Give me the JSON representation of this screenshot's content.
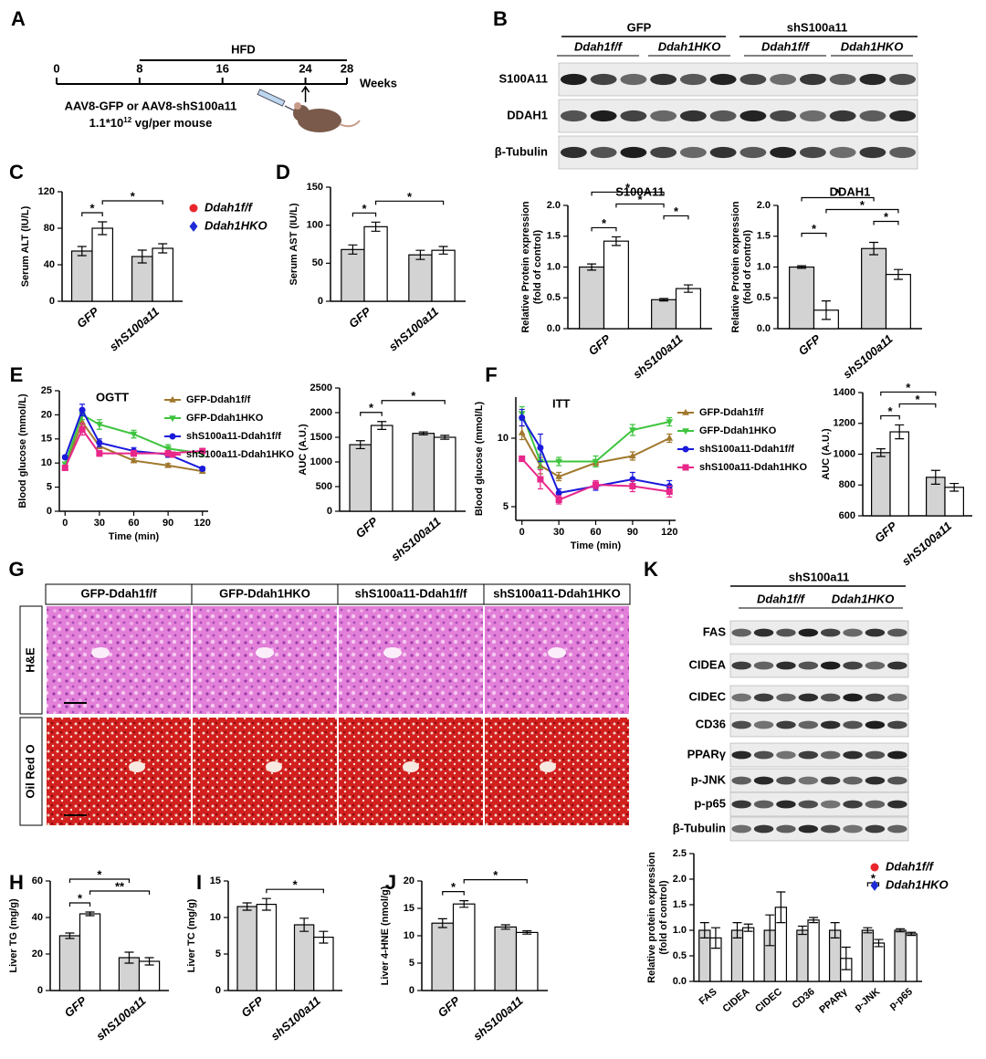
{
  "panel_labels": [
    "A",
    "B",
    "C",
    "D",
    "E",
    "F",
    "G",
    "H",
    "I",
    "J",
    "K"
  ],
  "timeline": {
    "period": "HFD",
    "ticks": [
      0,
      8,
      16,
      24,
      28
    ],
    "unit": "Weeks",
    "injection": "AAV8-GFP or AAV8-shS100a11",
    "dose": [
      "1.1*10",
      "12",
      " vg/per mouse"
    ]
  },
  "blot_b": {
    "groups": [
      "GFP",
      "shS100a11"
    ],
    "genotypes": [
      "Ddah1f/f",
      "Ddah1HKO",
      "Ddah1f/f",
      "Ddah1HKO"
    ],
    "rows": [
      "S100A11",
      "DDAH1",
      "β-Tubulin"
    ]
  },
  "histology": {
    "columns": [
      "GFP-Ddah1f/f",
      "GFP-Ddah1HKO",
      "shS100a11-Ddah1f/f",
      "shS100a11-Ddah1HKO"
    ],
    "rows": [
      "H&E",
      "Oil Red O"
    ]
  },
  "blot_k": {
    "group": "shS100a11",
    "genotypes": [
      "Ddah1f/f",
      "Ddah1HKO"
    ],
    "rows": [
      "FAS",
      "CIDEA",
      "CIDEC",
      "CD36",
      "PPARγ",
      "p-JNK",
      "p-p65",
      "β-Tubulin"
    ]
  },
  "chart_data": [
    {
      "type": "bar",
      "categories": [
        "GFP",
        "shS100a11"
      ],
      "ylabel": "Serum ALT (IU/L)",
      "ylim": [
        0,
        120
      ],
      "yticks": [
        0,
        40,
        80,
        120
      ],
      "legend": "upper right",
      "series": [
        {
          "name": "Ddah1f/f",
          "color": "#d3d3d3",
          "marker": "circle",
          "marker_color": "#e8262b",
          "values": [
            55,
            49
          ],
          "errors": [
            5,
            7
          ]
        },
        {
          "name": "Ddah1HKO",
          "color": "#ffffff",
          "marker": "diamond",
          "marker_color": "#1f2bd6",
          "values": [
            80,
            58
          ],
          "errors": [
            7,
            5
          ]
        }
      ],
      "significance": [
        {
          "from": [
            0,
            0
          ],
          "to": [
            0,
            1
          ],
          "label": "*"
        },
        {
          "from": [
            0,
            1
          ],
          "to": [
            1,
            1
          ],
          "label": "*"
        }
      ]
    },
    {
      "type": "bar",
      "categories": [
        "GFP",
        "shS100a11"
      ],
      "ylabel": "Serum AST (IU/L)",
      "ylim": [
        0,
        150
      ],
      "yticks": [
        0,
        50,
        100,
        150
      ],
      "series": [
        {
          "color": "#d3d3d3",
          "values": [
            68,
            61
          ],
          "errors": [
            6,
            6
          ]
        },
        {
          "color": "#ffffff",
          "values": [
            98,
            67
          ],
          "errors": [
            6,
            5
          ]
        }
      ],
      "significance": [
        {
          "from": [
            0,
            0
          ],
          "to": [
            0,
            1
          ],
          "label": "*"
        },
        {
          "from": [
            0,
            1
          ],
          "to": [
            1,
            1
          ],
          "label": "*"
        }
      ]
    },
    {
      "type": "bar",
      "title": "S100A11",
      "categories": [
        "GFP",
        "shS100a11"
      ],
      "ylabel": [
        "Relative Protein expression",
        "(fold of control)"
      ],
      "ylim": [
        0,
        2
      ],
      "yticks": [
        {
          "value": 0,
          "label": "0.0"
        },
        0.5,
        {
          "value": 1,
          "label": "1.0"
        },
        1.5,
        {
          "value": 2,
          "label": "2.0"
        }
      ],
      "series": [
        {
          "color": "#d3d3d3",
          "values": [
            1.0,
            0.47
          ],
          "errors": [
            0.05,
            0.02
          ]
        },
        {
          "color": "#ffffff",
          "values": [
            1.42,
            0.65
          ],
          "errors": [
            0.07,
            0.06
          ]
        }
      ],
      "significance": [
        {
          "from": [
            0,
            0
          ],
          "to": [
            0,
            1
          ],
          "label": "*"
        },
        {
          "from": [
            1,
            0
          ],
          "to": [
            1,
            1
          ],
          "label": "*"
        },
        {
          "from": [
            0,
            1
          ],
          "to": [
            1,
            0
          ],
          "label": "*"
        },
        {
          "from": [
            0,
            0
          ],
          "to": [
            1,
            0
          ],
          "label": "*"
        }
      ]
    },
    {
      "type": "bar",
      "title": "DDAH1",
      "categories": [
        "GFP",
        "shS100a11"
      ],
      "ylabel": [
        "Relative Protein expression",
        "(fold of control)"
      ],
      "ylim": [
        0,
        2
      ],
      "yticks": [
        {
          "value": 0,
          "label": "0.0"
        },
        0.5,
        {
          "value": 1,
          "label": "1.0"
        },
        1.5,
        {
          "value": 2,
          "label": "2.0"
        }
      ],
      "series": [
        {
          "color": "#d3d3d3",
          "values": [
            1.0,
            1.3
          ],
          "errors": [
            0.02,
            0.1
          ]
        },
        {
          "color": "#ffffff",
          "values": [
            0.3,
            0.88
          ],
          "errors": [
            0.15,
            0.08
          ]
        }
      ],
      "significance": [
        {
          "from": [
            0,
            0
          ],
          "to": [
            0,
            1
          ],
          "label": "*"
        },
        {
          "from": [
            1,
            0
          ],
          "to": [
            1,
            1
          ],
          "label": "*"
        },
        {
          "from": [
            0,
            1
          ],
          "to": [
            1,
            1
          ],
          "label": "*"
        },
        {
          "from": [
            0,
            0
          ],
          "to": [
            1,
            0
          ],
          "label": "*"
        }
      ]
    },
    {
      "type": "line",
      "title": "OGTT",
      "x": [
        0,
        15,
        30,
        60,
        90,
        120
      ],
      "xlim": [
        -5,
        125
      ],
      "xticks": [
        0,
        30,
        60,
        90,
        120
      ],
      "xlabel": "Time (min)",
      "ylabel": "Blood glucose (mmol/L)",
      "ylim": [
        0,
        25
      ],
      "yticks": [
        0,
        5,
        10,
        15,
        20,
        25
      ],
      "legend": "upper right",
      "series": [
        {
          "name": "GFP-Ddah1f/f",
          "color": "#a0782d",
          "marker": "triangle-up",
          "values": [
            9.2,
            18.5,
            13.5,
            10.5,
            9.5,
            8.3
          ],
          "errors": [
            0.3,
            1.5,
            0.5,
            0.4,
            0.4,
            0.3
          ]
        },
        {
          "name": "GFP-Ddah1HKO",
          "color": "#3ec43e",
          "marker": "triangle-down",
          "values": [
            9.8,
            20,
            18,
            16,
            13,
            12
          ],
          "errors": [
            0.3,
            1,
            1,
            0.8,
            0.8,
            0.6
          ]
        },
        {
          "name": "shS100a11-Ddah1f/f",
          "color": "#1a1adb",
          "marker": "circle",
          "values": [
            11.2,
            21,
            14.2,
            12.5,
            11.8,
            8.8
          ],
          "errors": [
            0.3,
            1.2,
            0.8,
            0.7,
            0.6,
            0.4
          ]
        },
        {
          "name": "shS100a11-Ddah1HKO",
          "color": "#e8278a",
          "marker": "square",
          "values": [
            9,
            17,
            12,
            12,
            12,
            12.5
          ],
          "errors": [
            0.3,
            1.2,
            0.6,
            0.6,
            0.6,
            0.5
          ]
        }
      ]
    },
    {
      "type": "bar",
      "categories": [
        "GFP",
        "shS100a11"
      ],
      "ylabel": "AUC (A.U.)",
      "ylim": [
        0,
        2500
      ],
      "yticks": [
        0,
        500,
        1000,
        1500,
        2000,
        2500
      ],
      "series": [
        {
          "color": "#d3d3d3",
          "values": [
            1350,
            1580
          ],
          "errors": [
            80,
            30
          ]
        },
        {
          "color": "#ffffff",
          "values": [
            1740,
            1500
          ],
          "errors": [
            80,
            40
          ]
        }
      ],
      "significance": [
        {
          "from": [
            0,
            0
          ],
          "to": [
            0,
            1
          ],
          "label": "*"
        },
        {
          "from": [
            0,
            1
          ],
          "to": [
            1,
            1
          ],
          "label": "*"
        }
      ]
    },
    {
      "type": "line",
      "title": "ITT",
      "x": [
        0,
        15,
        30,
        60,
        90,
        120
      ],
      "xlim": [
        -5,
        125
      ],
      "xticks": [
        0,
        30,
        60,
        90,
        120
      ],
      "xlabel": "Time (min)",
      "ylabel": "Blood glucose (mmol/L)",
      "ylim": [
        4,
        13
      ],
      "yticks": [
        5,
        10
      ],
      "legend": "upper right",
      "series": [
        {
          "name": "GFP-Ddah1f/f",
          "color": "#a0782d",
          "marker": "triangle-up",
          "values": [
            10.4,
            8.0,
            7.2,
            8.2,
            8.7,
            10
          ],
          "errors": [
            0.5,
            0.6,
            0.3,
            0.2,
            0.3,
            0.3
          ]
        },
        {
          "name": "GFP-Ddah1HKO",
          "color": "#3ec43e",
          "marker": "triangle-down",
          "values": [
            11.8,
            8.3,
            8.3,
            8.3,
            10.6,
            11.2
          ],
          "errors": [
            0.5,
            0.5,
            0.3,
            0.4,
            0.4,
            0.3
          ]
        },
        {
          "name": "shS100a11-Ddah1f/f",
          "color": "#1a1adb",
          "marker": "circle",
          "values": [
            11.5,
            9.3,
            6,
            6.5,
            7,
            6.5
          ],
          "errors": [
            0.6,
            1,
            0.3,
            0.3,
            0.5,
            0.4
          ]
        },
        {
          "name": "shS100a11-Ddah1HKO",
          "color": "#e8278a",
          "marker": "square",
          "values": [
            8.5,
            7,
            5.5,
            6.6,
            6.5,
            6.1
          ],
          "errors": [
            0.2,
            0.7,
            0.3,
            0.3,
            0.4,
            0.4
          ]
        }
      ]
    },
    {
      "type": "bar",
      "categories": [
        "GFP",
        "shS100a11"
      ],
      "ylabel": "AUC (A.U.)",
      "ylim": [
        600,
        1400
      ],
      "yticks": [
        600,
        800,
        1000,
        1200,
        1400
      ],
      "series": [
        {
          "color": "#d3d3d3",
          "values": [
            1010,
            850
          ],
          "errors": [
            25,
            45
          ]
        },
        {
          "color": "#ffffff",
          "values": [
            1145,
            785
          ],
          "errors": [
            45,
            25
          ]
        }
      ],
      "significance": [
        {
          "from": [
            0,
            0
          ],
          "to": [
            0,
            1
          ],
          "label": "*"
        },
        {
          "from": [
            0,
            1
          ],
          "to": [
            1,
            0
          ],
          "label": "*"
        },
        {
          "from": [
            0,
            0
          ],
          "to": [
            1,
            0
          ],
          "label": "*"
        }
      ]
    },
    {
      "type": "bar",
      "categories": [
        "GFP",
        "shS100a11"
      ],
      "ylabel": "Liver TG (mg/g)",
      "ylim": [
        0,
        60
      ],
      "yticks": [
        0,
        20,
        40,
        60
      ],
      "series": [
        {
          "color": "#d3d3d3",
          "values": [
            30,
            18
          ],
          "errors": [
            1.5,
            3
          ]
        },
        {
          "color": "#ffffff",
          "values": [
            42,
            16
          ],
          "errors": [
            1,
            2
          ]
        }
      ],
      "significance": [
        {
          "from": [
            0,
            0
          ],
          "to": [
            0,
            1
          ],
          "label": "*"
        },
        {
          "from": [
            0,
            1
          ],
          "to": [
            1,
            1
          ],
          "label": "**"
        },
        {
          "from": [
            0,
            0
          ],
          "to": [
            1,
            0
          ],
          "label": "*"
        }
      ]
    },
    {
      "type": "bar",
      "categories": [
        "GFP",
        "shS100a11"
      ],
      "ylabel": "Liver TC (mg/g)",
      "ylim": [
        0,
        15
      ],
      "yticks": [
        0,
        5,
        10,
        15
      ],
      "series": [
        {
          "color": "#d3d3d3",
          "values": [
            11.5,
            9
          ],
          "errors": [
            0.5,
            0.9
          ]
        },
        {
          "color": "#ffffff",
          "values": [
            11.8,
            7.3
          ],
          "errors": [
            0.8,
            0.8
          ]
        }
      ],
      "significance": [
        {
          "from": [
            0,
            1
          ],
          "to": [
            1,
            1
          ],
          "label": "*"
        }
      ]
    },
    {
      "type": "bar",
      "categories": [
        "GFP",
        "shS100a11"
      ],
      "ylabel": "Liver 4-HNE (nmol/g)",
      "ylim": [
        0,
        20
      ],
      "yticks": [
        0,
        5,
        10,
        15,
        20
      ],
      "series": [
        {
          "color": "#d3d3d3",
          "values": [
            12.3,
            11.6
          ],
          "errors": [
            0.8,
            0.4
          ]
        },
        {
          "color": "#ffffff",
          "values": [
            15.8,
            10.6
          ],
          "errors": [
            0.6,
            0.3
          ]
        }
      ],
      "significance": [
        {
          "from": [
            0,
            0
          ],
          "to": [
            0,
            1
          ],
          "label": "*"
        },
        {
          "from": [
            0,
            1
          ],
          "to": [
            1,
            1
          ],
          "label": "*"
        }
      ]
    },
    {
      "type": "bar",
      "categories": [
        "FAS",
        "CIDEA",
        "CIDEC",
        "CD36",
        "PPARγ",
        "p-JNK",
        "p-p65"
      ],
      "ylabel": [
        "Relative protein expression",
        "(fold of control)"
      ],
      "ylim": [
        0,
        2.5
      ],
      "yticks": [
        {
          "value": 0,
          "label": "0.0"
        },
        0.5,
        {
          "value": 1,
          "label": "1.0"
        },
        1.5,
        {
          "value": 2,
          "label": "2.0"
        },
        2.5
      ],
      "legend": "upper right",
      "series": [
        {
          "name": "Ddah1f/f",
          "color": "#d3d3d3",
          "marker": "circle",
          "marker_color": "#e8262b",
          "values": [
            1.0,
            1.0,
            1.0,
            1.0,
            1.0,
            1.0,
            1.0
          ],
          "errors": [
            0.15,
            0.15,
            0.3,
            0.08,
            0.15,
            0.05,
            0.03
          ]
        },
        {
          "name": "Ddah1HKO",
          "color": "#ffffff",
          "marker": "diamond",
          "marker_color": "#1f2bd6",
          "values": [
            0.85,
            1.05,
            1.45,
            1.2,
            0.45,
            0.75,
            0.93
          ],
          "errors": [
            0.2,
            0.07,
            0.3,
            0.05,
            0.22,
            0.07,
            0.03
          ]
        }
      ],
      "significance": [
        {
          "from": [
            5,
            0
          ],
          "to": [
            5,
            1
          ],
          "label": "*"
        }
      ]
    }
  ]
}
